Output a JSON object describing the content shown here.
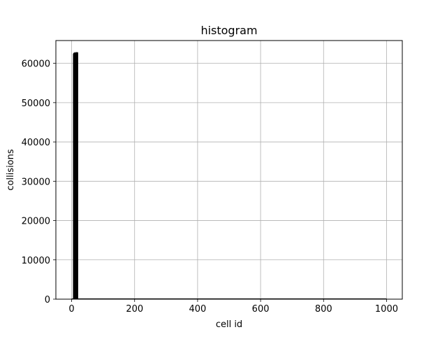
{
  "chart_data": {
    "type": "bar",
    "title": "histogram",
    "xlabel": "cell id",
    "ylabel": "collisions",
    "xlim": [
      -50,
      1050
    ],
    "ylim": [
      0,
      65800
    ],
    "xticks": [
      0,
      200,
      400,
      600,
      800,
      1000
    ],
    "yticks": [
      0,
      10000,
      20000,
      30000,
      40000,
      50000,
      60000
    ],
    "grid": true,
    "bar_color": "#000000",
    "bin_width": 1,
    "bins": [
      {
        "x": 5,
        "value": 62400
      },
      {
        "x": 6,
        "value": 62600
      },
      {
        "x": 7,
        "value": 62500
      },
      {
        "x": 8,
        "value": 62700
      },
      {
        "x": 9,
        "value": 62500
      },
      {
        "x": 10,
        "value": 62600
      },
      {
        "x": 11,
        "value": 62800
      },
      {
        "x": 12,
        "value": 62500
      },
      {
        "x": 13,
        "value": 62700
      },
      {
        "x": 14,
        "value": 62600
      },
      {
        "x": 15,
        "value": 62800
      },
      {
        "x": 16,
        "value": 62700
      },
      {
        "x": 17,
        "value": 62600
      },
      {
        "x": 18,
        "value": 62800
      },
      {
        "x": 19,
        "value": 62700
      }
    ]
  }
}
